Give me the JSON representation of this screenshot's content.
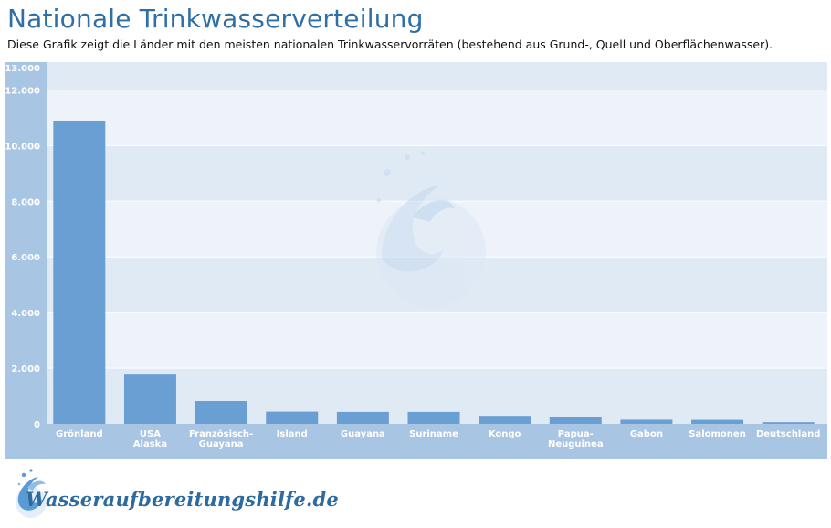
{
  "header": {
    "title": "Nationale Trinkwasserverteilung",
    "subtitle": "Diese Grafik zeigt die Länder mit den meisten nationalen Trinkwasservorräten (bestehend aus Grund-, Quell und Oberflächenwasser)."
  },
  "colors": {
    "bar": "#6a9fd4",
    "plot_band_dark": "#e0eaf5",
    "plot_band_light": "#eef3fa",
    "frame": "#a9c5e4",
    "title": "#2e6fa8"
  },
  "chart_data": {
    "type": "bar",
    "title": "Nationale Trinkwasserverteilung",
    "xlabel": "",
    "ylabel": "",
    "ylim": [
      0,
      13000
    ],
    "yticks": [
      "0",
      "2.000",
      "4.000",
      "6.000",
      "8.000",
      "10.000",
      "12.000",
      "13.000"
    ],
    "grid": true,
    "categories": [
      [
        "Grönland"
      ],
      [
        "USA",
        "Alaska"
      ],
      [
        "Französisch-",
        "Guayana"
      ],
      [
        "Island"
      ],
      [
        "Guayana"
      ],
      [
        "Suriname"
      ],
      [
        "Kongo"
      ],
      [
        "Papua-",
        "Neuguinea"
      ],
      [
        "Gabon"
      ],
      [
        "Salomonen"
      ],
      [
        "Deutschland"
      ]
    ],
    "values": [
      10900,
      1800,
      820,
      440,
      430,
      430,
      290,
      230,
      150,
      145,
      60
    ]
  },
  "logo": {
    "text": "Wasseraufbereitungshilfe.de",
    "icon": "water-splash-icon"
  }
}
